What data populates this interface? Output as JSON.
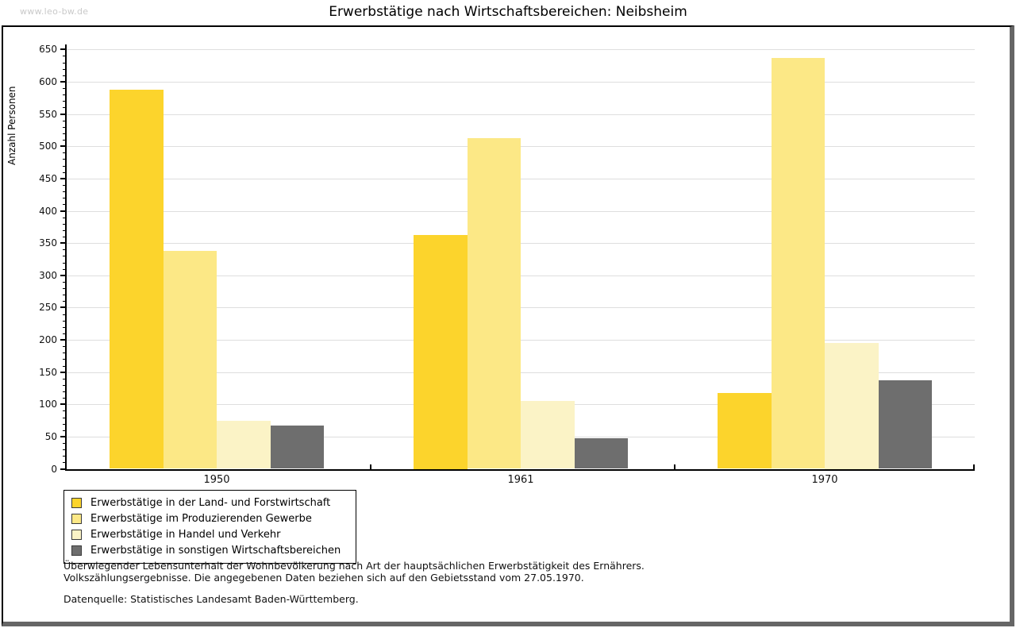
{
  "watermark": "www.leo-bw.de",
  "title": "Erwerbstätige nach Wirtschaftsbereichen: Neibsheim",
  "chart_data": {
    "type": "bar",
    "title": "Erwerbstätige nach Wirtschaftsbereichen: Neibsheim",
    "categories": [
      "1950",
      "1961",
      "1970"
    ],
    "series": [
      {
        "name": "Erwerbstätige in der Land- und Forstwirtschaft",
        "color": "#fcd42c",
        "values": [
          588,
          363,
          118
        ]
      },
      {
        "name": "Erwerbstätige im Produzierenden Gewerbe",
        "color": "#fce886",
        "values": [
          338,
          513,
          637
        ]
      },
      {
        "name": "Erwerbstätige in Handel und Verkehr",
        "color": "#fbf3c6",
        "values": [
          74,
          105,
          195
        ]
      },
      {
        "name": "Erwerbstätige in sonstigen Wirtschaftsbereichen",
        "color": "#6e6e6e",
        "values": [
          67,
          47,
          137
        ]
      }
    ],
    "xlabel": "",
    "ylabel": "Anzahl Personen",
    "ylim": [
      0,
      650
    ],
    "ytick_major_step": 50,
    "ytick_minor_step": 10,
    "grid": "horizontal",
    "gridline_color": "#dedede",
    "legend_position": "bottom-left"
  },
  "footnotes": [
    "Überwiegender Lebensunterhalt der Wohnbevölkerung nach Art der hauptsächlichen Erwerbstätigkeit des Ernährers.",
    "Volkszählungsergebnisse. Die angegebenen Daten beziehen sich auf den Gebietsstand vom 27.05.1970.",
    "Datenquelle: Statistisches Landesamt Baden-Württemberg."
  ]
}
